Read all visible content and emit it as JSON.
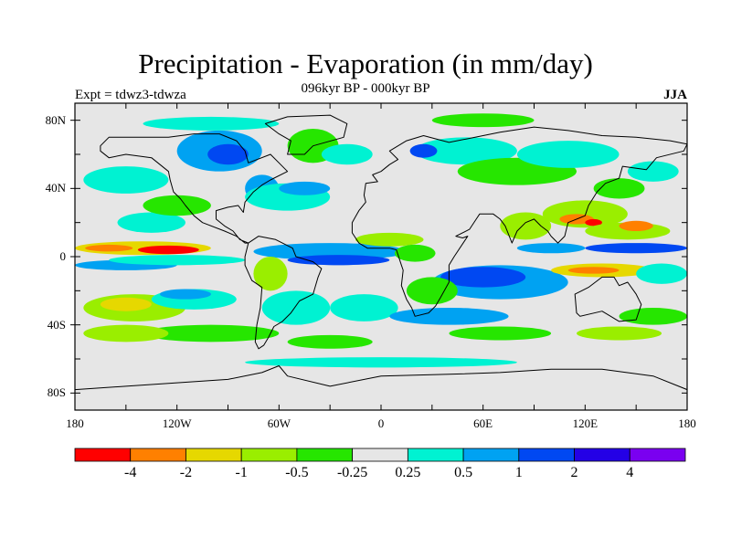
{
  "map": {
    "title": "Precipitation - Evaporation (in mm/day)",
    "subtitle": "096kyr BP - 000kyr BP",
    "left_label": "Expt = tdwz3-tdwza",
    "right_label": "JJA",
    "lon_range": [
      -180,
      180
    ],
    "lat_range": [
      -90,
      90
    ],
    "y_ticks": [
      {
        "value": 80,
        "label": "80N"
      },
      {
        "value": 40,
        "label": "40N"
      },
      {
        "value": 0,
        "label": "0"
      },
      {
        "value": -40,
        "label": "40S"
      },
      {
        "value": -80,
        "label": "80S"
      }
    ],
    "x_ticks": [
      {
        "value": -180,
        "label": "180"
      },
      {
        "value": -120,
        "label": "120W"
      },
      {
        "value": -60,
        "label": "60W"
      },
      {
        "value": 0,
        "label": "0"
      },
      {
        "value": 60,
        "label": "60E"
      },
      {
        "value": 120,
        "label": "120E"
      },
      {
        "value": 180,
        "label": "180"
      }
    ],
    "background_color": "#e6e6e6",
    "colorbar": {
      "colors": [
        "#ff0000",
        "#ff8000",
        "#e6d800",
        "#9aee00",
        "#26e600",
        "#e6e6e6",
        "#00f2d2",
        "#00a2f2",
        "#0048f2",
        "#2400e6",
        "#7a00f0"
      ],
      "labels": [
        "-4",
        "-2",
        "-1",
        "-0.5",
        "-0.25",
        "0.25",
        "0.5",
        "1",
        "2",
        "4"
      ]
    },
    "anomaly_regions": [
      {
        "lon": -140,
        "lat": 5,
        "rx": 40,
        "ry": 4,
        "level": 2
      },
      {
        "lon": -125,
        "lat": 4,
        "rx": 18,
        "ry": 2.5,
        "level": 0
      },
      {
        "lon": -160,
        "lat": 5,
        "rx": 14,
        "ry": 2,
        "level": 1
      },
      {
        "lon": -150,
        "lat": -5,
        "rx": 30,
        "ry": 3,
        "level": 7
      },
      {
        "lon": -120,
        "lat": -2,
        "rx": 40,
        "ry": 3,
        "level": 6
      },
      {
        "lon": -145,
        "lat": -30,
        "rx": 30,
        "ry": 8,
        "level": 3
      },
      {
        "lon": -150,
        "lat": -28,
        "rx": 15,
        "ry": 4,
        "level": 2
      },
      {
        "lon": -110,
        "lat": -25,
        "rx": 25,
        "ry": 6,
        "level": 6
      },
      {
        "lon": -115,
        "lat": -22,
        "rx": 15,
        "ry": 3,
        "level": 7
      },
      {
        "lon": -150,
        "lat": 45,
        "rx": 25,
        "ry": 8,
        "level": 6
      },
      {
        "lon": -135,
        "lat": 20,
        "rx": 20,
        "ry": 6,
        "level": 6
      },
      {
        "lon": -120,
        "lat": 30,
        "rx": 20,
        "ry": 6,
        "level": 4
      },
      {
        "lon": -95,
        "lat": 62,
        "rx": 25,
        "ry": 12,
        "level": 7
      },
      {
        "lon": -90,
        "lat": 60,
        "rx": 12,
        "ry": 6,
        "level": 8
      },
      {
        "lon": -70,
        "lat": 40,
        "rx": 10,
        "ry": 8,
        "level": 7
      },
      {
        "lon": -55,
        "lat": 35,
        "rx": 25,
        "ry": 8,
        "level": 6
      },
      {
        "lon": -40,
        "lat": 65,
        "rx": 15,
        "ry": 10,
        "level": 4
      },
      {
        "lon": -20,
        "lat": 60,
        "rx": 15,
        "ry": 6,
        "level": 6
      },
      {
        "lon": -45,
        "lat": 40,
        "rx": 15,
        "ry": 4,
        "level": 7
      },
      {
        "lon": -30,
        "lat": 3,
        "rx": 45,
        "ry": 5,
        "level": 7
      },
      {
        "lon": -25,
        "lat": -2,
        "rx": 30,
        "ry": 3,
        "level": 8
      },
      {
        "lon": -50,
        "lat": -30,
        "rx": 20,
        "ry": 10,
        "level": 6
      },
      {
        "lon": -10,
        "lat": -30,
        "rx": 20,
        "ry": 8,
        "level": 6
      },
      {
        "lon": -65,
        "lat": -10,
        "rx": 10,
        "ry": 10,
        "level": 3
      },
      {
        "lon": -100,
        "lat": -45,
        "rx": 40,
        "ry": 5,
        "level": 4
      },
      {
        "lon": -150,
        "lat": -45,
        "rx": 25,
        "ry": 5,
        "level": 3
      },
      {
        "lon": 5,
        "lat": 10,
        "rx": 20,
        "ry": 4,
        "level": 3
      },
      {
        "lon": 20,
        "lat": 2,
        "rx": 12,
        "ry": 5,
        "level": 4
      },
      {
        "lon": 50,
        "lat": 62,
        "rx": 30,
        "ry": 8,
        "level": 6
      },
      {
        "lon": 25,
        "lat": 62,
        "rx": 8,
        "ry": 4,
        "level": 8
      },
      {
        "lon": 80,
        "lat": 50,
        "rx": 35,
        "ry": 8,
        "level": 4
      },
      {
        "lon": 110,
        "lat": 60,
        "rx": 30,
        "ry": 8,
        "level": 6
      },
      {
        "lon": 70,
        "lat": -15,
        "rx": 40,
        "ry": 10,
        "level": 7
      },
      {
        "lon": 60,
        "lat": -12,
        "rx": 25,
        "ry": 6,
        "level": 8
      },
      {
        "lon": 40,
        "lat": -35,
        "rx": 35,
        "ry": 5,
        "level": 7
      },
      {
        "lon": 30,
        "lat": -20,
        "rx": 15,
        "ry": 8,
        "level": 4
      },
      {
        "lon": 85,
        "lat": 18,
        "rx": 15,
        "ry": 8,
        "level": 3
      },
      {
        "lon": 120,
        "lat": 25,
        "rx": 25,
        "ry": 8,
        "level": 3
      },
      {
        "lon": 115,
        "lat": 22,
        "rx": 10,
        "ry": 3,
        "level": 1
      },
      {
        "lon": 125,
        "lat": 20,
        "rx": 5,
        "ry": 2,
        "level": 0
      },
      {
        "lon": 145,
        "lat": 15,
        "rx": 25,
        "ry": 5,
        "level": 3
      },
      {
        "lon": 150,
        "lat": 18,
        "rx": 10,
        "ry": 3,
        "level": 1
      },
      {
        "lon": 140,
        "lat": 40,
        "rx": 15,
        "ry": 6,
        "level": 4
      },
      {
        "lon": 160,
        "lat": 50,
        "rx": 15,
        "ry": 6,
        "level": 6
      },
      {
        "lon": 130,
        "lat": -8,
        "rx": 30,
        "ry": 4,
        "level": 2
      },
      {
        "lon": 125,
        "lat": -8,
        "rx": 15,
        "ry": 2,
        "level": 1
      },
      {
        "lon": 150,
        "lat": 5,
        "rx": 30,
        "ry": 3,
        "level": 8
      },
      {
        "lon": 100,
        "lat": 5,
        "rx": 20,
        "ry": 3,
        "level": 7
      },
      {
        "lon": 165,
        "lat": -10,
        "rx": 15,
        "ry": 6,
        "level": 6
      },
      {
        "lon": 160,
        "lat": -35,
        "rx": 20,
        "ry": 5,
        "level": 4
      },
      {
        "lon": 140,
        "lat": -45,
        "rx": 25,
        "ry": 4,
        "level": 3
      },
      {
        "lon": 70,
        "lat": -45,
        "rx": 30,
        "ry": 4,
        "level": 4
      },
      {
        "lon": -30,
        "lat": -50,
        "rx": 25,
        "ry": 4,
        "level": 4
      },
      {
        "lon": 0,
        "lat": -62,
        "rx": 80,
        "ry": 3,
        "level": 6
      },
      {
        "lon": -100,
        "lat": 78,
        "rx": 40,
        "ry": 4,
        "level": 6
      },
      {
        "lon": 60,
        "lat": 80,
        "rx": 30,
        "ry": 4,
        "level": 4
      }
    ],
    "landmasses": [
      {
        "name": "north-america",
        "points": [
          [
            -165,
            65
          ],
          [
            -160,
            70
          ],
          [
            -140,
            70
          ],
          [
            -125,
            70
          ],
          [
            -110,
            72
          ],
          [
            -95,
            72
          ],
          [
            -85,
            68
          ],
          [
            -80,
            62
          ],
          [
            -78,
            55
          ],
          [
            -65,
            60
          ],
          [
            -60,
            55
          ],
          [
            -55,
            50
          ],
          [
            -65,
            45
          ],
          [
            -70,
            42
          ],
          [
            -75,
            38
          ],
          [
            -80,
            32
          ],
          [
            -81,
            26
          ],
          [
            -84,
            30
          ],
          [
            -90,
            29
          ],
          [
            -97,
            27
          ],
          [
            -97,
            22
          ],
          [
            -92,
            18
          ],
          [
            -87,
            15
          ],
          [
            -83,
            10
          ],
          [
            -78,
            8
          ],
          [
            -80,
            8
          ],
          [
            -85,
            12
          ],
          [
            -92,
            15
          ],
          [
            -105,
            20
          ],
          [
            -110,
            24
          ],
          [
            -115,
            30
          ],
          [
            -118,
            34
          ],
          [
            -122,
            38
          ],
          [
            -124,
            45
          ],
          [
            -125,
            50
          ],
          [
            -135,
            58
          ],
          [
            -150,
            60
          ],
          [
            -160,
            58
          ],
          [
            -165,
            62
          ]
        ]
      },
      {
        "name": "greenland",
        "points": [
          [
            -55,
            60
          ],
          [
            -45,
            60
          ],
          [
            -40,
            65
          ],
          [
            -22,
            70
          ],
          [
            -20,
            78
          ],
          [
            -30,
            83
          ],
          [
            -55,
            82
          ],
          [
            -68,
            78
          ],
          [
            -60,
            72
          ],
          [
            -53,
            68
          ]
        ]
      },
      {
        "name": "south-america",
        "points": [
          [
            -78,
            8
          ],
          [
            -72,
            12
          ],
          [
            -62,
            10
          ],
          [
            -52,
            5
          ],
          [
            -50,
            0
          ],
          [
            -40,
            -3
          ],
          [
            -35,
            -7
          ],
          [
            -37,
            -12
          ],
          [
            -40,
            -22
          ],
          [
            -48,
            -26
          ],
          [
            -53,
            -33
          ],
          [
            -58,
            -38
          ],
          [
            -63,
            -41
          ],
          [
            -66,
            -47
          ],
          [
            -69,
            -52
          ],
          [
            -72,
            -54
          ],
          [
            -74,
            -50
          ],
          [
            -73,
            -40
          ],
          [
            -71,
            -30
          ],
          [
            -70,
            -18
          ],
          [
            -76,
            -14
          ],
          [
            -80,
            -5
          ],
          [
            -80,
            0
          ]
        ]
      },
      {
        "name": "eurasia-africa",
        "points": [
          [
            -10,
            36
          ],
          [
            -9,
            43
          ],
          [
            -2,
            44
          ],
          [
            -5,
            48
          ],
          [
            0,
            50
          ],
          [
            5,
            54
          ],
          [
            10,
            57
          ],
          [
            5,
            62
          ],
          [
            15,
            68
          ],
          [
            25,
            71
          ],
          [
            40,
            67
          ],
          [
            50,
            69
          ],
          [
            70,
            73
          ],
          [
            90,
            76
          ],
          [
            110,
            74
          ],
          [
            130,
            71
          ],
          [
            150,
            70
          ],
          [
            170,
            68
          ],
          [
            180,
            66
          ],
          [
            178,
            62
          ],
          [
            162,
            58
          ],
          [
            156,
            51
          ],
          [
            142,
            53
          ],
          [
            140,
            46
          ],
          [
            132,
            43
          ],
          [
            127,
            38
          ],
          [
            122,
            30
          ],
          [
            120,
            24
          ],
          [
            110,
            20
          ],
          [
            108,
            12
          ],
          [
            104,
            8
          ],
          [
            100,
            12
          ],
          [
            98,
            15
          ],
          [
            94,
            18
          ],
          [
            90,
            22
          ],
          [
            85,
            20
          ],
          [
            80,
            15
          ],
          [
            77,
            8
          ],
          [
            73,
            18
          ],
          [
            70,
            22
          ],
          [
            66,
            25
          ],
          [
            58,
            25
          ],
          [
            56,
            22
          ],
          [
            52,
            16
          ],
          [
            44,
            12
          ],
          [
            48,
            11
          ],
          [
            51,
            12
          ],
          [
            43,
            0
          ],
          [
            40,
            -5
          ],
          [
            40,
            -15
          ],
          [
            35,
            -24
          ],
          [
            32,
            -29
          ],
          [
            28,
            -33
          ],
          [
            20,
            -35
          ],
          [
            18,
            -30
          ],
          [
            15,
            -25
          ],
          [
            12,
            -17
          ],
          [
            13,
            -8
          ],
          [
            12,
            -5
          ],
          [
            9,
            4
          ],
          [
            5,
            5
          ],
          [
            -2,
            5
          ],
          [
            -8,
            5
          ],
          [
            -13,
            8
          ],
          [
            -17,
            14
          ],
          [
            -17,
            20
          ],
          [
            -13,
            27
          ],
          [
            -9,
            32
          ]
        ]
      },
      {
        "name": "australia",
        "points": [
          [
            114,
            -22
          ],
          [
            122,
            -18
          ],
          [
            130,
            -12
          ],
          [
            137,
            -12
          ],
          [
            140,
            -17
          ],
          [
            145,
            -15
          ],
          [
            150,
            -22
          ],
          [
            153,
            -28
          ],
          [
            150,
            -37
          ],
          [
            140,
            -38
          ],
          [
            135,
            -35
          ],
          [
            130,
            -32
          ],
          [
            117,
            -35
          ],
          [
            115,
            -33
          ]
        ]
      },
      {
        "name": "antarctica",
        "points": [
          [
            -180,
            -90
          ],
          [
            -180,
            -78
          ],
          [
            -150,
            -76
          ],
          [
            -120,
            -74
          ],
          [
            -90,
            -72
          ],
          [
            -70,
            -68
          ],
          [
            -60,
            -64
          ],
          [
            -55,
            -70
          ],
          [
            -30,
            -76
          ],
          [
            0,
            -70
          ],
          [
            40,
            -69
          ],
          [
            70,
            -68
          ],
          [
            100,
            -66
          ],
          [
            130,
            -66
          ],
          [
            160,
            -70
          ],
          [
            180,
            -78
          ],
          [
            180,
            -90
          ]
        ]
      }
    ]
  }
}
